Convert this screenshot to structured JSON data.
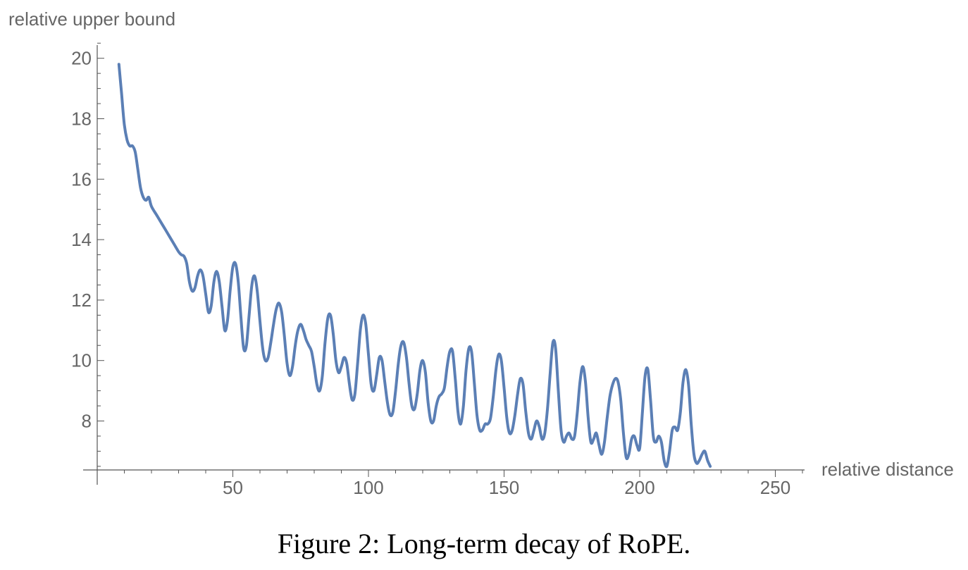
{
  "caption": "Figure 2: Long-term decay of RoPE.",
  "chart_data": {
    "type": "line",
    "xlabel": "relative distance",
    "ylabel": "relative upper bound",
    "xlim": [
      0,
      262
    ],
    "ylim": [
      6.3,
      20.6
    ],
    "x_ticks": [
      50,
      100,
      150,
      200,
      250
    ],
    "y_ticks": [
      8,
      10,
      12,
      14,
      16,
      18,
      20
    ],
    "grid": false,
    "line_color": "#5b7fb5",
    "series": [
      {
        "points": [
          [
            8,
            19.8
          ],
          [
            9,
            18.8
          ],
          [
            10,
            17.8
          ],
          [
            11,
            17.3
          ],
          [
            12,
            17.1
          ],
          [
            13,
            17.1
          ],
          [
            14,
            16.9
          ],
          [
            15,
            16.3
          ],
          [
            16,
            15.7
          ],
          [
            17,
            15.4
          ],
          [
            18,
            15.3
          ],
          [
            19,
            15.4
          ],
          [
            20,
            15.1
          ],
          [
            22,
            14.8
          ],
          [
            24,
            14.5
          ],
          [
            26,
            14.2
          ],
          [
            28,
            13.9
          ],
          [
            30,
            13.6
          ],
          [
            31,
            13.5
          ],
          [
            32,
            13.45
          ],
          [
            33,
            13.2
          ],
          [
            34,
            12.6
          ],
          [
            35,
            12.3
          ],
          [
            36,
            12.4
          ],
          [
            37,
            12.8
          ],
          [
            38,
            13.0
          ],
          [
            39,
            12.8
          ],
          [
            40,
            12.2
          ],
          [
            41,
            11.6
          ],
          [
            42,
            11.8
          ],
          [
            43,
            12.6
          ],
          [
            44,
            12.95
          ],
          [
            45,
            12.6
          ],
          [
            46,
            11.8
          ],
          [
            47,
            11.0
          ],
          [
            48,
            11.3
          ],
          [
            49,
            12.3
          ],
          [
            50,
            13.1
          ],
          [
            51,
            13.2
          ],
          [
            52,
            12.6
          ],
          [
            53,
            11.4
          ],
          [
            54,
            10.4
          ],
          [
            55,
            10.5
          ],
          [
            56,
            11.5
          ],
          [
            57,
            12.5
          ],
          [
            58,
            12.8
          ],
          [
            59,
            12.3
          ],
          [
            60,
            11.3
          ],
          [
            61,
            10.4
          ],
          [
            62,
            10.0
          ],
          [
            63,
            10.1
          ],
          [
            64,
            10.6
          ],
          [
            65,
            11.2
          ],
          [
            66,
            11.7
          ],
          [
            67,
            11.9
          ],
          [
            68,
            11.6
          ],
          [
            69,
            10.8
          ],
          [
            70,
            9.9
          ],
          [
            71,
            9.5
          ],
          [
            72,
            9.8
          ],
          [
            73,
            10.5
          ],
          [
            74,
            11.0
          ],
          [
            75,
            11.2
          ],
          [
            76,
            11.0
          ],
          [
            77,
            10.7
          ],
          [
            78,
            10.5
          ],
          [
            79,
            10.3
          ],
          [
            80,
            9.8
          ],
          [
            81,
            9.2
          ],
          [
            82,
            9.0
          ],
          [
            83,
            9.5
          ],
          [
            84,
            10.6
          ],
          [
            85,
            11.4
          ],
          [
            86,
            11.5
          ],
          [
            87,
            10.9
          ],
          [
            88,
            10.0
          ],
          [
            89,
            9.6
          ],
          [
            90,
            9.8
          ],
          [
            91,
            10.1
          ],
          [
            92,
            9.9
          ],
          [
            93,
            9.2
          ],
          [
            94,
            8.7
          ],
          [
            95,
            8.9
          ],
          [
            96,
            9.9
          ],
          [
            97,
            11.0
          ],
          [
            98,
            11.5
          ],
          [
            99,
            11.2
          ],
          [
            100,
            10.2
          ],
          [
            101,
            9.2
          ],
          [
            102,
            9.0
          ],
          [
            103,
            9.5
          ],
          [
            104,
            10.1
          ],
          [
            105,
            10.0
          ],
          [
            106,
            9.3
          ],
          [
            107,
            8.6
          ],
          [
            108,
            8.2
          ],
          [
            109,
            8.3
          ],
          [
            110,
            9.0
          ],
          [
            111,
            9.9
          ],
          [
            112,
            10.5
          ],
          [
            113,
            10.6
          ],
          [
            114,
            10.1
          ],
          [
            115,
            9.2
          ],
          [
            116,
            8.5
          ],
          [
            117,
            8.4
          ],
          [
            118,
            8.9
          ],
          [
            119,
            9.7
          ],
          [
            120,
            10.0
          ],
          [
            121,
            9.6
          ],
          [
            122,
            8.6
          ],
          [
            123,
            8.0
          ],
          [
            124,
            8.0
          ],
          [
            125,
            8.5
          ],
          [
            126,
            8.8
          ],
          [
            127,
            8.9
          ],
          [
            128,
            9.1
          ],
          [
            129,
            9.8
          ],
          [
            130,
            10.3
          ],
          [
            131,
            10.3
          ],
          [
            132,
            9.4
          ],
          [
            133,
            8.3
          ],
          [
            134,
            7.9
          ],
          [
            135,
            8.5
          ],
          [
            136,
            9.7
          ],
          [
            137,
            10.4
          ],
          [
            138,
            10.3
          ],
          [
            139,
            9.3
          ],
          [
            140,
            8.2
          ],
          [
            141,
            7.7
          ],
          [
            142,
            7.7
          ],
          [
            143,
            7.9
          ],
          [
            144,
            7.9
          ],
          [
            145,
            8.1
          ],
          [
            146,
            8.8
          ],
          [
            147,
            9.7
          ],
          [
            148,
            10.2
          ],
          [
            149,
            10.0
          ],
          [
            150,
            9.1
          ],
          [
            151,
            8.1
          ],
          [
            152,
            7.6
          ],
          [
            153,
            7.7
          ],
          [
            154,
            8.2
          ],
          [
            155,
            8.9
          ],
          [
            156,
            9.4
          ],
          [
            157,
            9.2
          ],
          [
            158,
            8.3
          ],
          [
            159,
            7.6
          ],
          [
            160,
            7.4
          ],
          [
            161,
            7.7
          ],
          [
            162,
            8.0
          ],
          [
            163,
            7.8
          ],
          [
            164,
            7.4
          ],
          [
            165,
            7.6
          ],
          [
            166,
            8.4
          ],
          [
            167,
            9.6
          ],
          [
            168,
            10.6
          ],
          [
            169,
            10.4
          ],
          [
            170,
            9.0
          ],
          [
            171,
            7.7
          ],
          [
            172,
            7.3
          ],
          [
            173,
            7.5
          ],
          [
            174,
            7.6
          ],
          [
            175,
            7.4
          ],
          [
            176,
            7.5
          ],
          [
            177,
            8.3
          ],
          [
            178,
            9.3
          ],
          [
            179,
            9.8
          ],
          [
            180,
            9.3
          ],
          [
            181,
            8.1
          ],
          [
            182,
            7.3
          ],
          [
            183,
            7.4
          ],
          [
            184,
            7.6
          ],
          [
            185,
            7.2
          ],
          [
            186,
            6.9
          ],
          [
            187,
            7.3
          ],
          [
            188,
            8.1
          ],
          [
            189,
            8.8
          ],
          [
            190,
            9.2
          ],
          [
            191,
            9.4
          ],
          [
            192,
            9.3
          ],
          [
            193,
            8.7
          ],
          [
            194,
            7.6
          ],
          [
            195,
            6.8
          ],
          [
            196,
            6.9
          ],
          [
            197,
            7.4
          ],
          [
            198,
            7.5
          ],
          [
            199,
            7.2
          ],
          [
            200,
            7.1
          ],
          [
            201,
            8.3
          ],
          [
            202,
            9.5
          ],
          [
            203,
            9.7
          ],
          [
            204,
            8.7
          ],
          [
            205,
            7.5
          ],
          [
            206,
            7.3
          ],
          [
            207,
            7.5
          ],
          [
            208,
            7.3
          ],
          [
            209,
            6.7
          ],
          [
            210,
            6.5
          ],
          [
            211,
            7.0
          ],
          [
            212,
            7.7
          ],
          [
            213,
            7.8
          ],
          [
            214,
            7.7
          ],
          [
            215,
            8.3
          ],
          [
            216,
            9.3
          ],
          [
            217,
            9.7
          ],
          [
            218,
            9.2
          ],
          [
            219,
            7.9
          ],
          [
            220,
            6.9
          ],
          [
            221,
            6.6
          ],
          [
            222,
            6.7
          ],
          [
            223,
            6.9
          ],
          [
            224,
            7.0
          ],
          [
            225,
            6.7
          ],
          [
            226,
            6.5
          ]
        ]
      }
    ]
  }
}
